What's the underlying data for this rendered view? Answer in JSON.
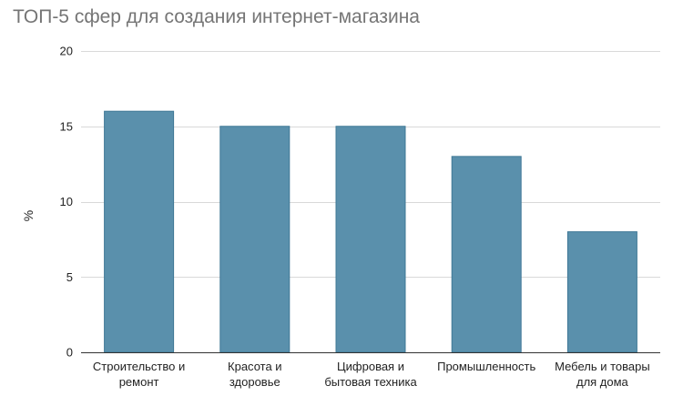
{
  "chart_data": {
    "type": "bar",
    "title": "ТОП-5 сфер для создания интернет-магазина",
    "xlabel": "",
    "ylabel": "%",
    "categories": [
      [
        "Строительство и",
        "ремонт"
      ],
      [
        "Красота и",
        "здоровье"
      ],
      [
        "Цифровая и",
        "бытовая техника"
      ],
      [
        "Промышленность"
      ],
      [
        "Мебель и товары",
        "для дома"
      ]
    ],
    "values": [
      16,
      15,
      15,
      13,
      8
    ],
    "ylim": [
      0,
      20
    ],
    "yticks": [
      0,
      5,
      10,
      15,
      20
    ],
    "grid": true,
    "legend": "none",
    "bar_color": "#5a90ac",
    "bar_border_color": "#3f7896",
    "grid_color": "#d9d9d9",
    "axis_color": "#333333"
  }
}
